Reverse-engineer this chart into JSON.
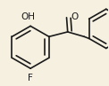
{
  "bg_color": "#f5f0e0",
  "bond_color": "#1a1a1a",
  "bond_lw": 1.2,
  "dbo": 0.038,
  "font_size": 7.5,
  "xlim": [
    0.02,
    1.02
  ],
  "ylim": [
    0.08,
    0.88
  ]
}
